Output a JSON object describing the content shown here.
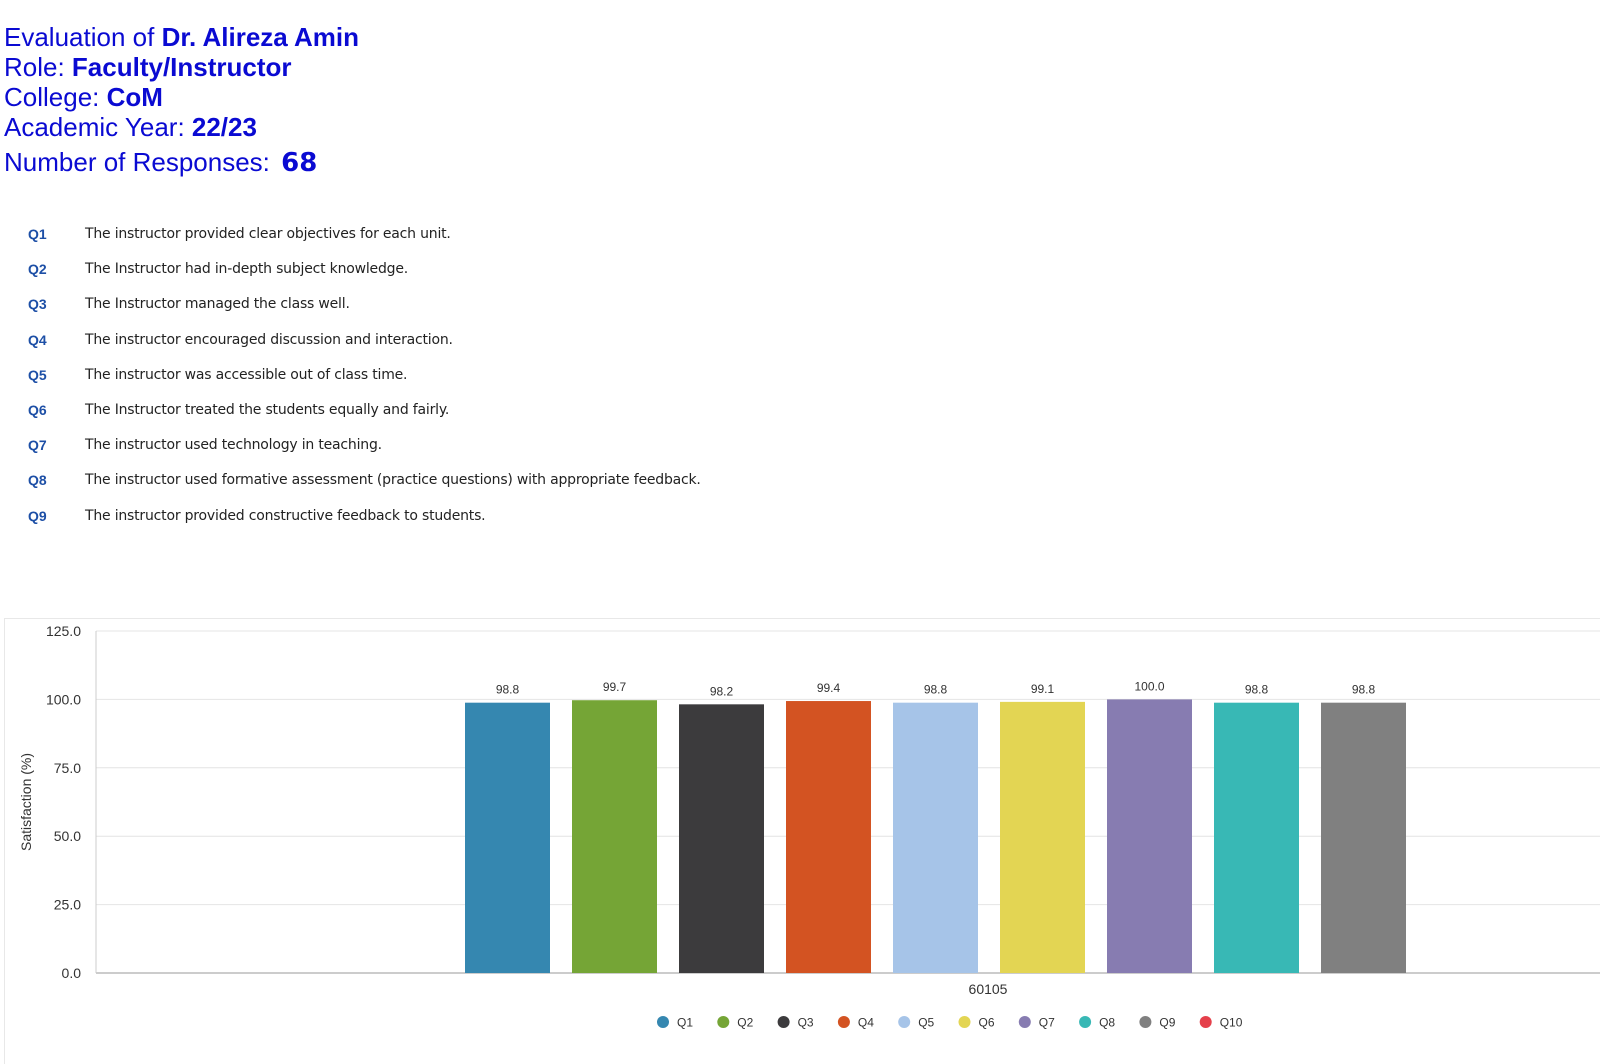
{
  "header": {
    "evaluation_prefix": "Evaluation of ",
    "evaluation_name": "Dr. Alireza Amin",
    "role_prefix": "Role: ",
    "role_value": "Faculty/Instructor",
    "college_prefix": "College: ",
    "college_value": "CoM",
    "year_prefix": "Academic Year: ",
    "year_value": "22/23",
    "responses_prefix": "Number of Responses: ",
    "responses_value": "68"
  },
  "questions": [
    {
      "code": "Q1",
      "text": "The instructor provided clear objectives for each unit."
    },
    {
      "code": "Q2",
      "text": "The Instructor had in-depth subject knowledge."
    },
    {
      "code": "Q3",
      "text": "The Instructor managed the class well."
    },
    {
      "code": "Q4",
      "text": "The instructor encouraged discussion and interaction."
    },
    {
      "code": "Q5",
      "text": "The instructor was accessible out of class time."
    },
    {
      "code": "Q6",
      "text": "The Instructor treated the students equally and fairly."
    },
    {
      "code": "Q7",
      "text": "The instructor used technology in teaching."
    },
    {
      "code": "Q8",
      "text": "The instructor used formative assessment (practice questions) with appropriate feedback."
    },
    {
      "code": "Q9",
      "text": "The instructor provided constructive feedback to students."
    }
  ],
  "chart_data": {
    "type": "bar",
    "categories": [
      "60105"
    ],
    "xlabel": "",
    "ylabel": "Satisfaction (%)",
    "ylim": [
      0,
      125
    ],
    "yticks": [
      "0.0",
      "25.0",
      "50.0",
      "75.0",
      "100.0",
      "125.0"
    ],
    "grid": true,
    "legend_position": "bottom",
    "series": [
      {
        "name": "Q1",
        "values": [
          98.8
        ],
        "label": "98.8",
        "color": "#3587b0"
      },
      {
        "name": "Q2",
        "values": [
          99.7
        ],
        "label": "99.7",
        "color": "#75a536"
      },
      {
        "name": "Q3",
        "values": [
          98.2
        ],
        "label": "98.2",
        "color": "#3c3b3d"
      },
      {
        "name": "Q4",
        "values": [
          99.4
        ],
        "label": "99.4",
        "color": "#d35322"
      },
      {
        "name": "Q5",
        "values": [
          98.8
        ],
        "label": "98.8",
        "color": "#a6c4e8"
      },
      {
        "name": "Q6",
        "values": [
          99.1
        ],
        "label": "99.1",
        "color": "#e3d553"
      },
      {
        "name": "Q7",
        "values": [
          100.0
        ],
        "label": "100.0",
        "color": "#877cb1"
      },
      {
        "name": "Q8",
        "values": [
          98.8
        ],
        "label": "98.8",
        "color": "#38b8b5"
      },
      {
        "name": "Q9",
        "values": [
          98.8
        ],
        "label": "98.8",
        "color": "#808080"
      },
      {
        "name": "Q10",
        "values": [
          null
        ],
        "label": "",
        "color": "#e5404b"
      }
    ]
  }
}
